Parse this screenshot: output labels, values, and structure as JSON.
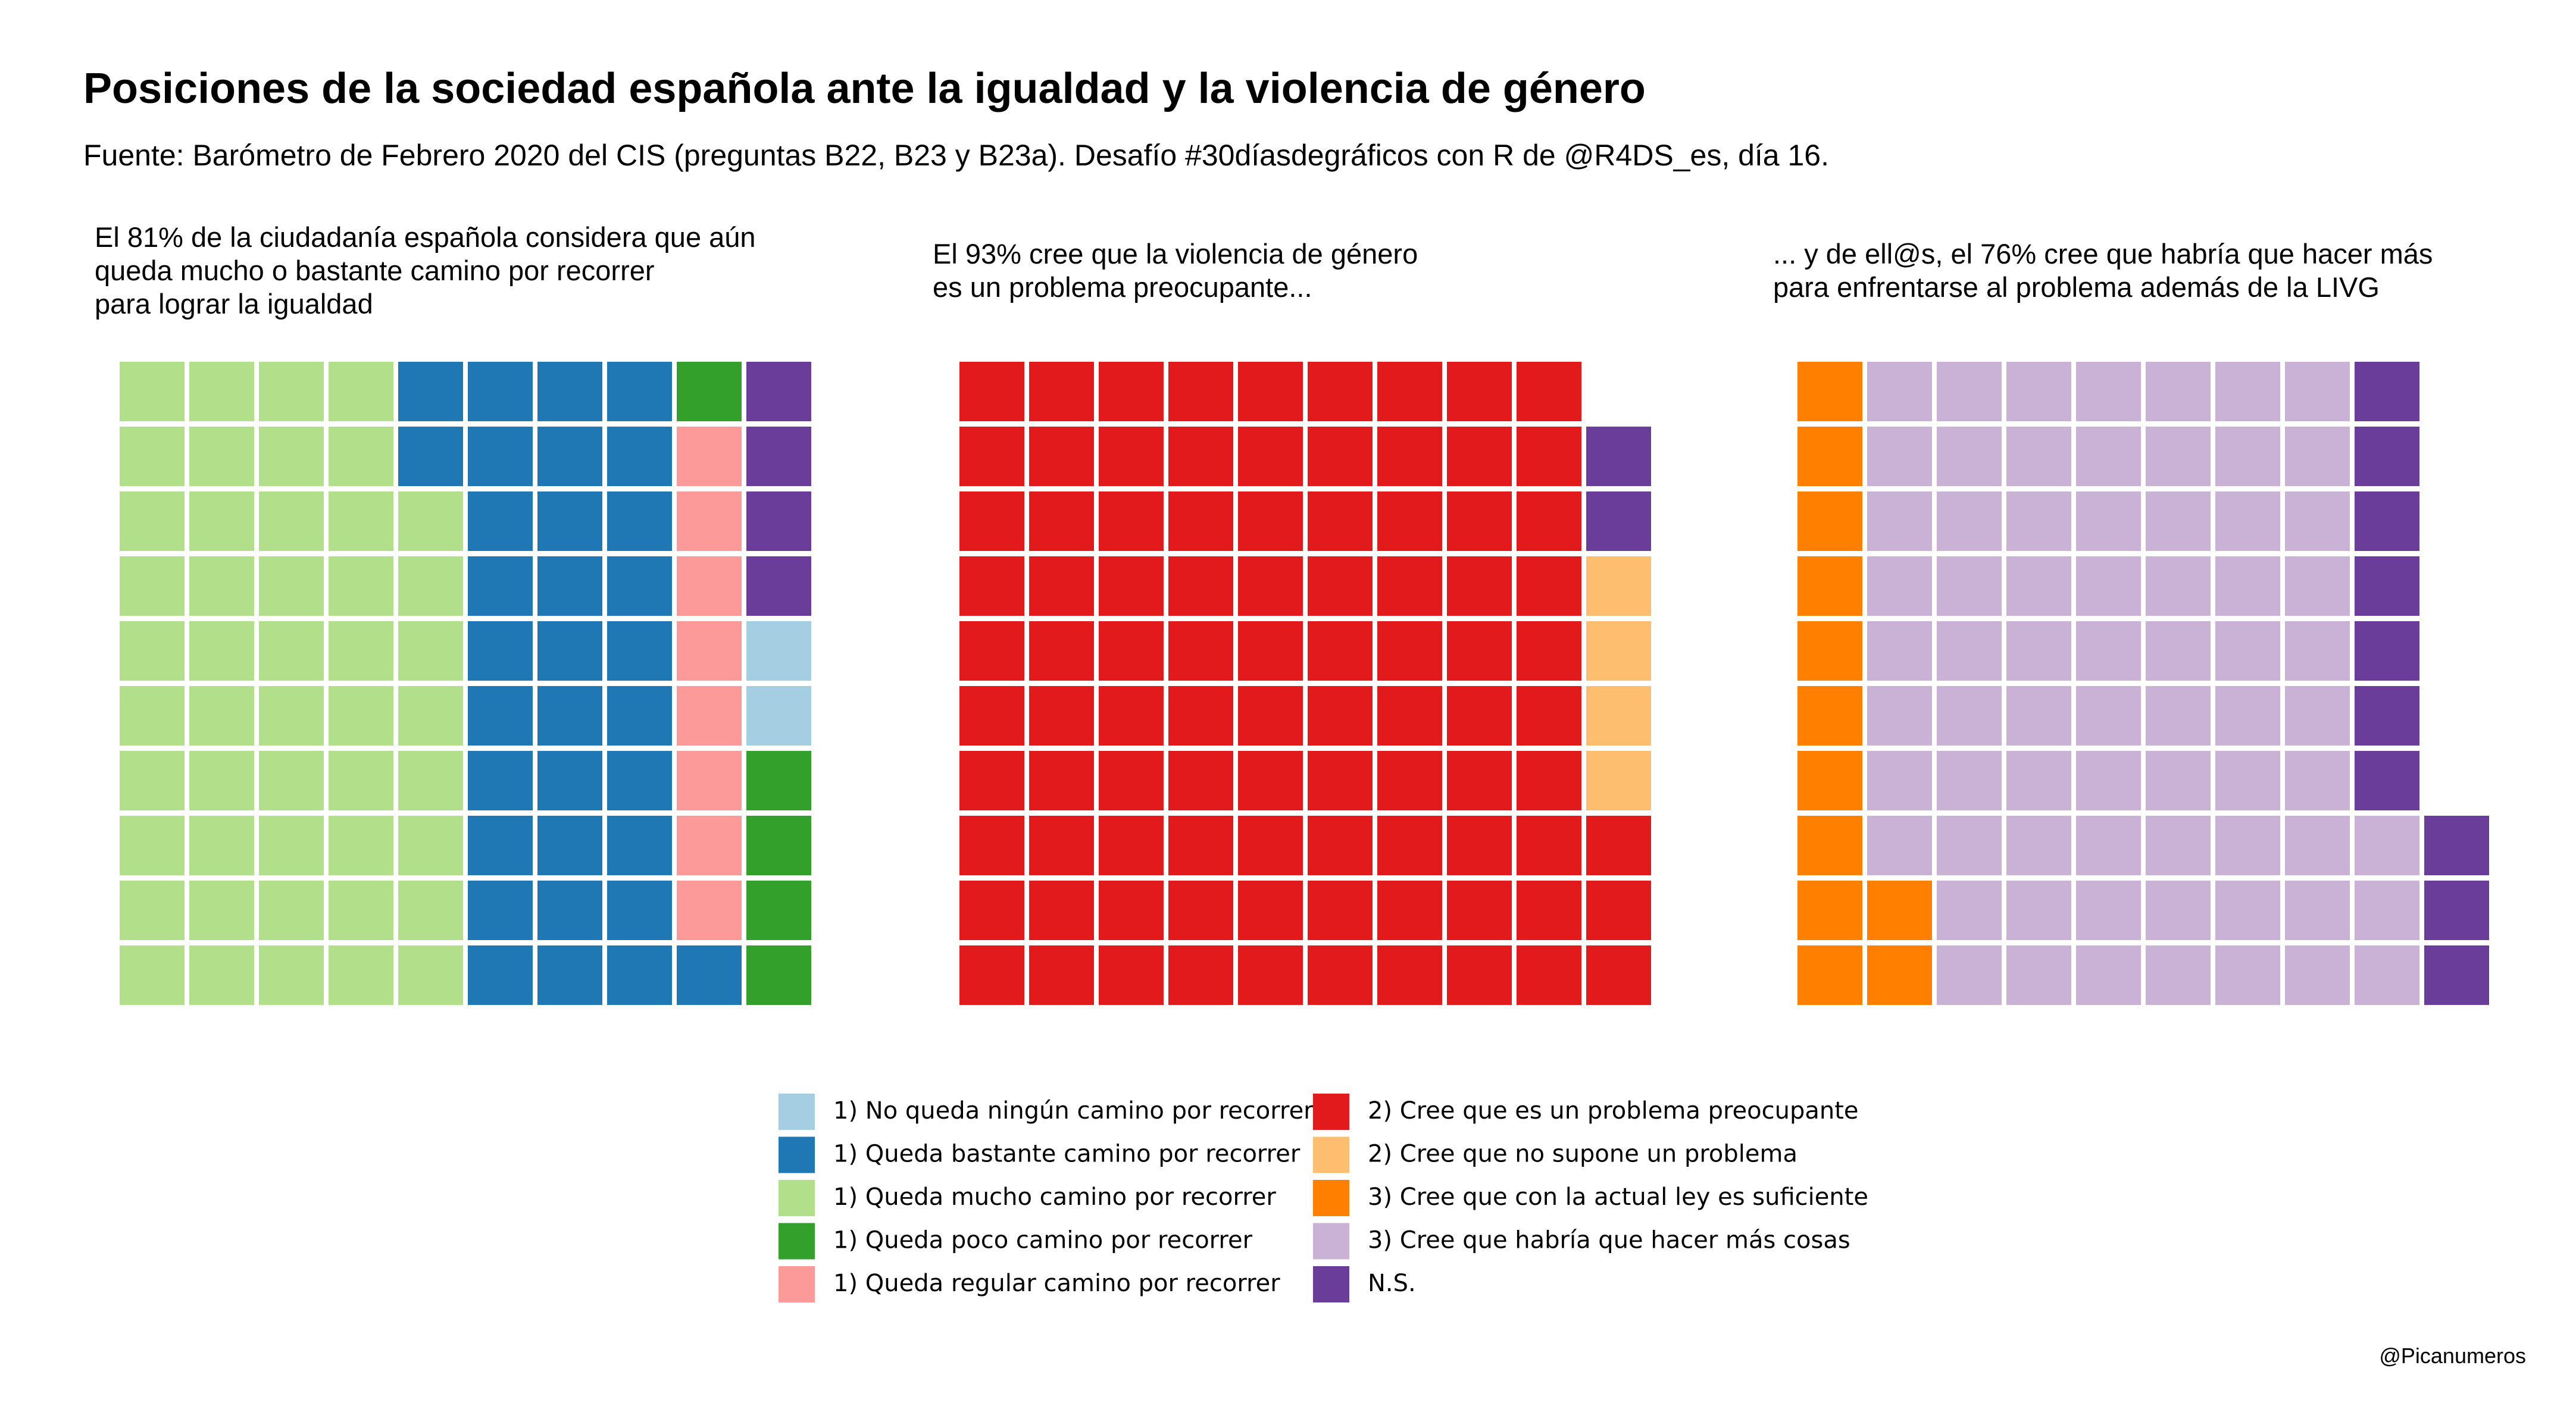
{
  "title": "Posiciones de la sociedad española ante la igualdad y la violencia de género",
  "subtitle": "Fuente: Barómetro de Febrero 2020 del CIS (preguntas B22, B23 y B23a). Desafío #30díasdegráficos con R de @R4DS_es, día 16.",
  "credit": "@Picanumeros",
  "chart_data": [
    {
      "type": "waffle",
      "title": "El 81% de la ciudadanía española considera que aún\nqueda mucho o bastante camino por recorrer\npara lograr la igualdad",
      "series": [
        {
          "name": "1) Queda mucho camino por recorrer",
          "color": "#b2df8a",
          "values": [
            48
          ]
        },
        {
          "name": "1) Queda bastante camino por recorrer",
          "color": "#1f78b4",
          "values": [
            33
          ]
        },
        {
          "name": "1) Queda regular camino por recorrer",
          "color": "#fb9a99",
          "values": [
            8
          ]
        },
        {
          "name": "1) Queda poco camino por recorrer",
          "color": "#33a02c",
          "values": [
            5
          ]
        },
        {
          "name": "1) No queda ningún camino por recorrer",
          "color": "#a6cee3",
          "values": [
            2
          ]
        },
        {
          "name": "N.S.",
          "color": "#6a3d9a",
          "values": [
            4
          ]
        }
      ]
    },
    {
      "type": "waffle",
      "title": "El 93% cree que la violencia de género\nes un problema preocupante...",
      "series": [
        {
          "name": "2) Cree que es un problema preocupante",
          "color": "#e31a1c",
          "values": [
            93
          ]
        },
        {
          "name": "2) Cree que no supone un problema",
          "color": "#fdbf6f",
          "values": [
            4
          ]
        },
        {
          "color": "#6a3d9a",
          "values": [
            2
          ]
        }
      ]
    },
    {
      "type": "waffle",
      "title": "... y de ell@s, el 76% cree que habría que hacer más\npara enfrentarse al problema además de la LIVG",
      "series": [
        {
          "name": "3) Cree que con la actual ley es suficiente",
          "color": "#ff7f00",
          "values": [
            12
          ]
        },
        {
          "name": "3) Cree que habría que hacer más cosas",
          "color": "#cab2d6",
          "values": [
            71
          ]
        },
        {
          "color": "#6a3d9a",
          "values": [
            10
          ]
        }
      ]
    }
  ]
}
